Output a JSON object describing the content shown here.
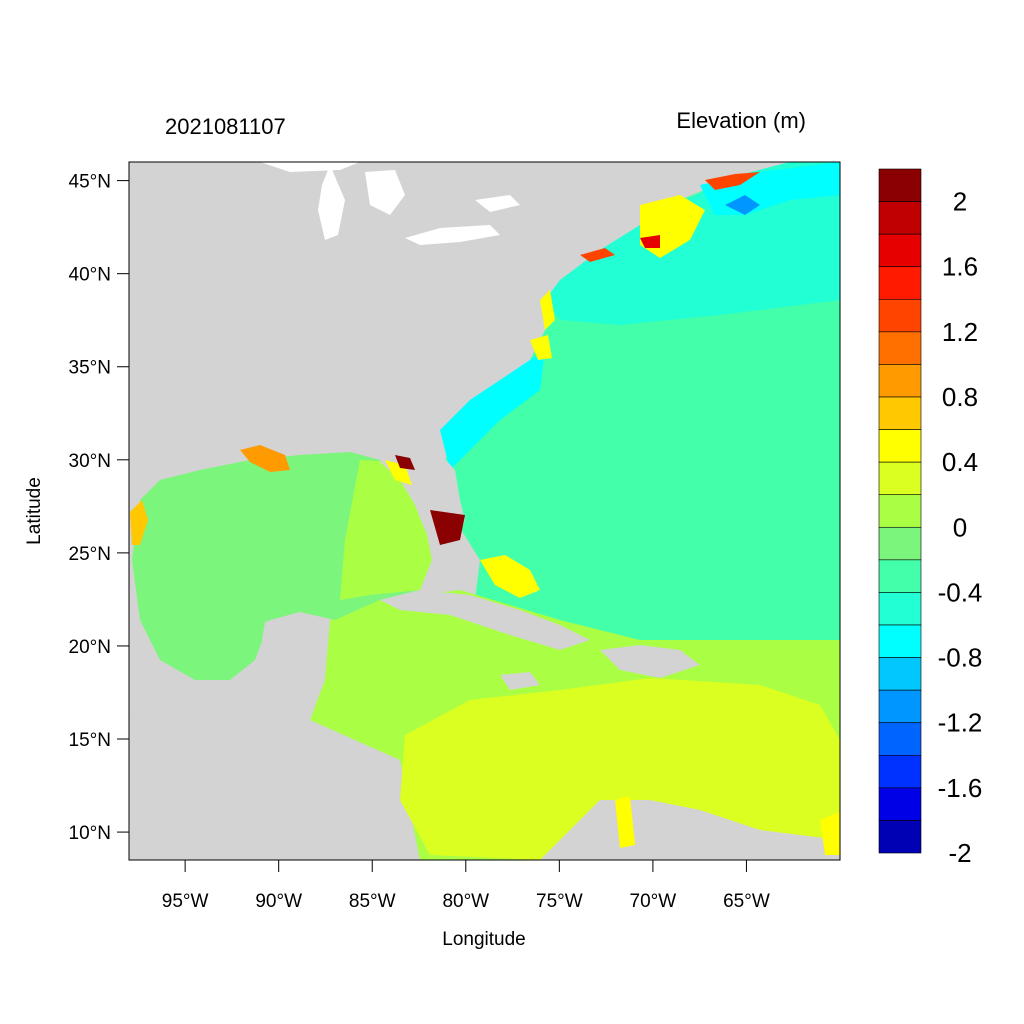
{
  "map": {
    "timestamp": "2021081107",
    "variable_title": "Elevation (m)",
    "x_axis_label": "Longitude",
    "y_axis_label": "Latitude",
    "lon_range": [
      -98,
      -60
    ],
    "lat_range": [
      8.5,
      46
    ],
    "lon_ticks": [
      "95°W",
      "90°W",
      "85°W",
      "80°W",
      "75°W",
      "70°W",
      "65°W"
    ],
    "lat_ticks": [
      "45°N",
      "40°N",
      "35°N",
      "30°N",
      "25°N",
      "20°N",
      "15°N",
      "10°N"
    ],
    "land_color": "#d3d3d3",
    "water_body_color": "#ffffff"
  },
  "colorbar": {
    "labels": [
      "2",
      "1.6",
      "1.2",
      "0.8",
      "0.4",
      "0",
      "-0.4",
      "-0.8",
      "-1.2",
      "-1.6",
      "-2"
    ],
    "colors": [
      "#8b0000",
      "#c00000",
      "#e60000",
      "#ff1a00",
      "#ff4400",
      "#ff7000",
      "#ff9a00",
      "#ffc800",
      "#ffff00",
      "#dcff22",
      "#aaff44",
      "#7cf57c",
      "#44ffaa",
      "#22ffd4",
      "#00ffff",
      "#00c8ff",
      "#0096ff",
      "#0064ff",
      "#0032ff",
      "#0000e6",
      "#0000b4"
    ]
  }
}
